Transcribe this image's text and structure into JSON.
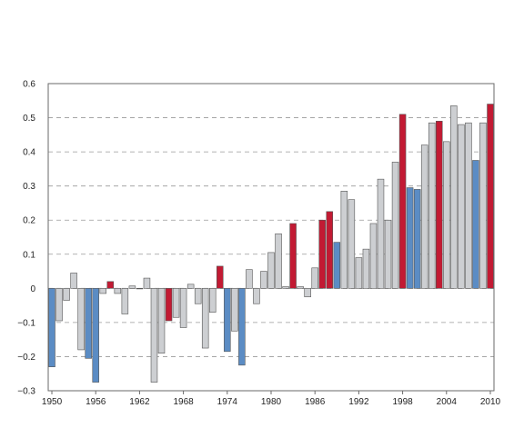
{
  "chart_data": {
    "type": "bar",
    "title": "",
    "xlabel": "",
    "ylabel": "",
    "ylim": [
      -0.3,
      0.6
    ],
    "grid": true,
    "yticks": [
      {
        "value": 0.6,
        "label": "0.6"
      },
      {
        "value": 0.5,
        "label": "0.5"
      },
      {
        "value": 0.4,
        "label": "0.4"
      },
      {
        "value": 0.3,
        "label": "0.3"
      },
      {
        "value": 0.2,
        "label": "0.2"
      },
      {
        "value": 0.1,
        "label": "0.1"
      },
      {
        "value": 0,
        "label": "0"
      },
      {
        "value": -0.1,
        "label": "−0.1"
      },
      {
        "value": -0.2,
        "label": "−0.2"
      },
      {
        "value": -0.3,
        "label": "−0.3"
      }
    ],
    "xticks": [
      {
        "year": 1950,
        "label": "1950"
      },
      {
        "year": 1956,
        "label": "1956"
      },
      {
        "year": 1962,
        "label": "1962"
      },
      {
        "year": 1968,
        "label": "1968"
      },
      {
        "year": 1974,
        "label": "1974"
      },
      {
        "year": 1980,
        "label": "1980"
      },
      {
        "year": 1986,
        "label": "1986"
      },
      {
        "year": 1992,
        "label": "1992"
      },
      {
        "year": 1998,
        "label": "1998"
      },
      {
        "year": 2004,
        "label": "2004"
      },
      {
        "year": 2010,
        "label": "2010"
      }
    ],
    "colors": {
      "gray": "#cdcfd2",
      "blue": "#5b8cc4",
      "red": "#c21a33",
      "grid": "#9a9a9a",
      "frame": "#6a6a6a"
    },
    "bars": [
      {
        "year": 1950,
        "value": -0.23,
        "color": "blue"
      },
      {
        "year": 1951,
        "value": -0.095,
        "color": "gray"
      },
      {
        "year": 1952,
        "value": -0.035,
        "color": "gray"
      },
      {
        "year": 1953,
        "value": 0.045,
        "color": "gray"
      },
      {
        "year": 1954,
        "value": -0.18,
        "color": "gray"
      },
      {
        "year": 1955,
        "value": -0.205,
        "color": "blue"
      },
      {
        "year": 1956,
        "value": -0.275,
        "color": "blue"
      },
      {
        "year": 1957,
        "value": -0.015,
        "color": "gray"
      },
      {
        "year": 1958,
        "value": 0.02,
        "color": "red"
      },
      {
        "year": 1959,
        "value": -0.015,
        "color": "gray"
      },
      {
        "year": 1960,
        "value": -0.075,
        "color": "gray"
      },
      {
        "year": 1961,
        "value": 0.007,
        "color": "gray"
      },
      {
        "year": 1962,
        "value": 0.0,
        "color": "gray"
      },
      {
        "year": 1963,
        "value": 0.03,
        "color": "gray"
      },
      {
        "year": 1964,
        "value": -0.275,
        "color": "gray"
      },
      {
        "year": 1965,
        "value": -0.19,
        "color": "gray"
      },
      {
        "year": 1966,
        "value": -0.095,
        "color": "red"
      },
      {
        "year": 1967,
        "value": -0.085,
        "color": "gray"
      },
      {
        "year": 1968,
        "value": -0.115,
        "color": "gray"
      },
      {
        "year": 1969,
        "value": 0.012,
        "color": "gray"
      },
      {
        "year": 1970,
        "value": -0.045,
        "color": "gray"
      },
      {
        "year": 1971,
        "value": -0.175,
        "color": "gray"
      },
      {
        "year": 1972,
        "value": -0.07,
        "color": "gray"
      },
      {
        "year": 1973,
        "value": 0.065,
        "color": "red"
      },
      {
        "year": 1974,
        "value": -0.185,
        "color": "blue"
      },
      {
        "year": 1975,
        "value": -0.125,
        "color": "gray"
      },
      {
        "year": 1976,
        "value": -0.225,
        "color": "blue"
      },
      {
        "year": 1977,
        "value": 0.055,
        "color": "gray"
      },
      {
        "year": 1978,
        "value": -0.045,
        "color": "gray"
      },
      {
        "year": 1979,
        "value": 0.05,
        "color": "gray"
      },
      {
        "year": 1980,
        "value": 0.105,
        "color": "gray"
      },
      {
        "year": 1981,
        "value": 0.16,
        "color": "gray"
      },
      {
        "year": 1982,
        "value": 0.005,
        "color": "gray"
      },
      {
        "year": 1983,
        "value": 0.19,
        "color": "red"
      },
      {
        "year": 1984,
        "value": 0.005,
        "color": "gray"
      },
      {
        "year": 1985,
        "value": -0.025,
        "color": "gray"
      },
      {
        "year": 1986,
        "value": 0.06,
        "color": "gray"
      },
      {
        "year": 1987,
        "value": 0.2,
        "color": "red"
      },
      {
        "year": 1988,
        "value": 0.225,
        "color": "red"
      },
      {
        "year": 1989,
        "value": 0.135,
        "color": "blue"
      },
      {
        "year": 1990,
        "value": 0.285,
        "color": "gray"
      },
      {
        "year": 1991,
        "value": 0.26,
        "color": "gray"
      },
      {
        "year": 1992,
        "value": 0.09,
        "color": "gray"
      },
      {
        "year": 1993,
        "value": 0.115,
        "color": "gray"
      },
      {
        "year": 1994,
        "value": 0.19,
        "color": "gray"
      },
      {
        "year": 1995,
        "value": 0.32,
        "color": "gray"
      },
      {
        "year": 1996,
        "value": 0.2,
        "color": "gray"
      },
      {
        "year": 1997,
        "value": 0.37,
        "color": "gray"
      },
      {
        "year": 1998,
        "value": 0.51,
        "color": "red"
      },
      {
        "year": 1999,
        "value": 0.295,
        "color": "blue"
      },
      {
        "year": 2000,
        "value": 0.29,
        "color": "blue"
      },
      {
        "year": 2001,
        "value": 0.42,
        "color": "gray"
      },
      {
        "year": 2002,
        "value": 0.485,
        "color": "gray"
      },
      {
        "year": 2003,
        "value": 0.49,
        "color": "red"
      },
      {
        "year": 2004,
        "value": 0.43,
        "color": "gray"
      },
      {
        "year": 2005,
        "value": 0.535,
        "color": "gray"
      },
      {
        "year": 2006,
        "value": 0.48,
        "color": "gray"
      },
      {
        "year": 2007,
        "value": 0.485,
        "color": "gray"
      },
      {
        "year": 2008,
        "value": 0.375,
        "color": "blue"
      },
      {
        "year": 2009,
        "value": 0.485,
        "color": "gray"
      },
      {
        "year": 2010,
        "value": 0.54,
        "color": "red"
      }
    ]
  }
}
